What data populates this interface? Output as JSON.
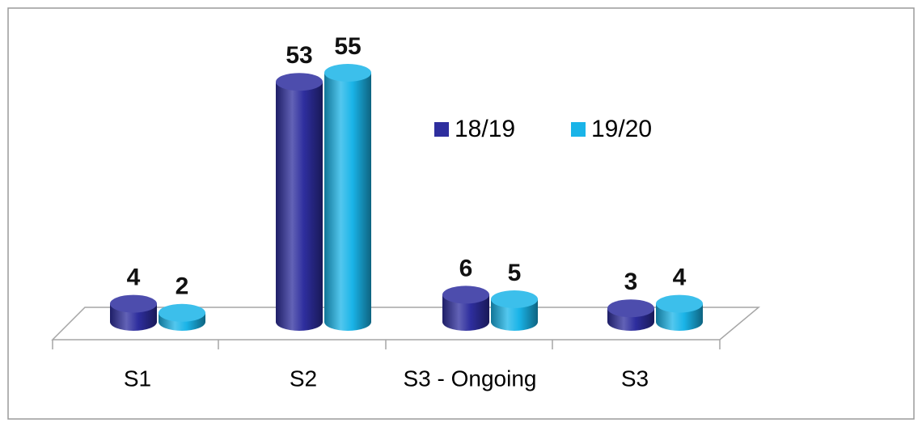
{
  "chart_data": {
    "type": "bar",
    "categories": [
      "S1",
      "S2",
      "S3 - Ongoing",
      "S3"
    ],
    "series": [
      {
        "name": "18/19",
        "color": "#2e2e9e",
        "values": [
          4,
          53,
          6,
          3
        ]
      },
      {
        "name": "19/20",
        "color": "#1ab4e8",
        "values": [
          2,
          55,
          5,
          4
        ]
      }
    ]
  }
}
